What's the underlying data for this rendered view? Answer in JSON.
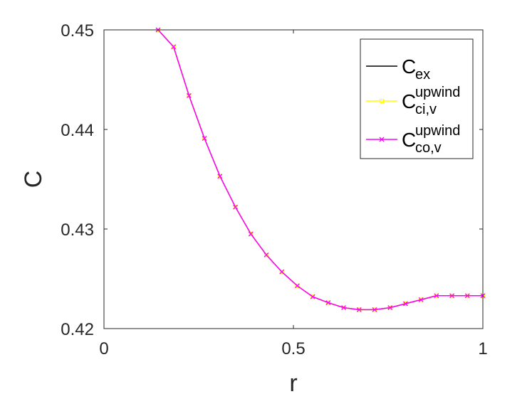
{
  "chart_data": {
    "type": "line",
    "xlabel": "r",
    "ylabel": "C",
    "xlim": [
      0,
      1
    ],
    "ylim": [
      0.42,
      0.45
    ],
    "xticks": [
      "0",
      "0.5",
      "1"
    ],
    "yticks": [
      "0.42",
      "0.43",
      "0.44",
      "0.45"
    ],
    "grid": false,
    "legend_position": "top-right",
    "x": [
      0.142857,
      0.183673,
      0.22449,
      0.265306,
      0.306122,
      0.346939,
      0.387755,
      0.428571,
      0.469388,
      0.510204,
      0.55102,
      0.591837,
      0.632653,
      0.673469,
      0.714286,
      0.755102,
      0.795918,
      0.836735,
      0.877551,
      0.918367,
      0.959184,
      1.0
    ],
    "series": [
      {
        "name": "C_ex",
        "legend": {
          "base": "C",
          "sub": "ex",
          "sup": ""
        },
        "color": "#000000",
        "marker": "none",
        "values": [
          0.45,
          0.4483,
          0.4434,
          0.4391,
          0.4353,
          0.4322,
          0.4295,
          0.4274,
          0.4257,
          0.4243,
          0.4232,
          0.4226,
          0.4221,
          0.4219,
          0.4219,
          0.4221,
          0.4225,
          0.4229,
          0.4233,
          0.4233,
          0.4233,
          0.4233
        ]
      },
      {
        "name": "C_ci,v^upwind",
        "legend": {
          "base": "C",
          "sub": "ci,v",
          "sup": "upwind"
        },
        "color": "#ffff00",
        "marker": "square",
        "values": [
          0.45,
          0.4483,
          0.4434,
          0.4391,
          0.4353,
          0.4322,
          0.4295,
          0.4274,
          0.4257,
          0.4243,
          0.4232,
          0.4226,
          0.4221,
          0.4219,
          0.4219,
          0.4221,
          0.4225,
          0.4229,
          0.4233,
          0.4233,
          0.4233,
          0.4233
        ]
      },
      {
        "name": "C_co,v^upwind",
        "legend": {
          "base": "C",
          "sub": "co,v",
          "sup": "upwind"
        },
        "color": "#ff00ff",
        "marker": "x",
        "values": [
          0.45,
          0.4483,
          0.4434,
          0.4391,
          0.4353,
          0.4322,
          0.4295,
          0.4274,
          0.4257,
          0.4243,
          0.4232,
          0.4226,
          0.4221,
          0.4219,
          0.4219,
          0.4221,
          0.4225,
          0.4229,
          0.4233,
          0.4233,
          0.4233,
          0.4233
        ]
      }
    ]
  }
}
